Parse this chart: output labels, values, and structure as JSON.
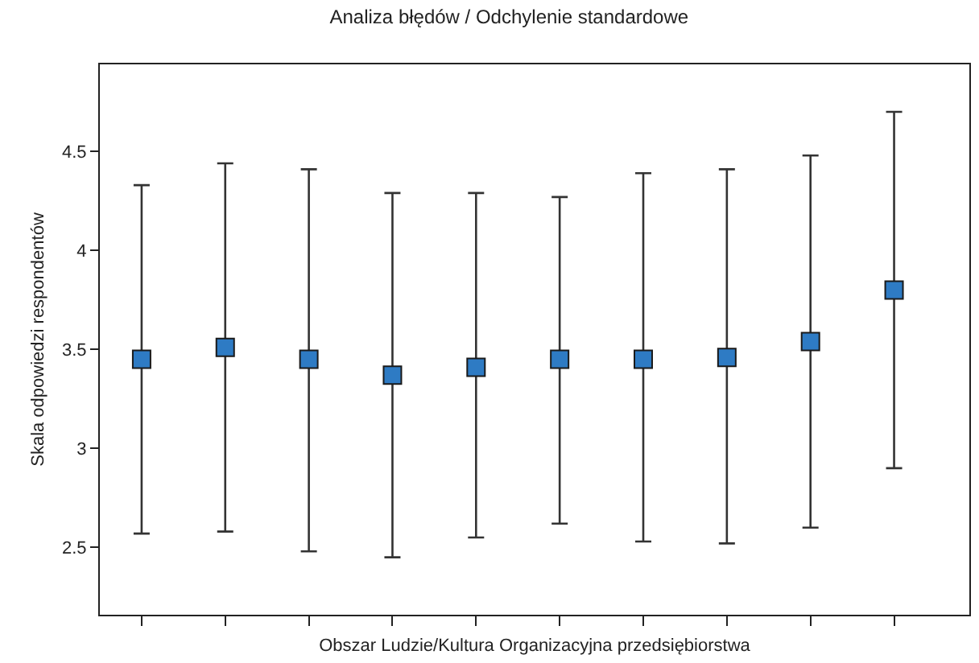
{
  "chart_data": {
    "type": "scatter",
    "title": "Analiza błędów / Odchylenie standardowe",
    "xlabel": "Obszar Ludzie/Kultura Organizacyjna przedsiębiorstwa",
    "ylabel": "Skala odpowiedzi respondentów",
    "categories": [
      null,
      null,
      null,
      null,
      null,
      null,
      null,
      null,
      null,
      null
    ],
    "values": [
      3.45,
      3.51,
      3.45,
      3.37,
      3.41,
      3.45,
      3.45,
      3.46,
      3.54,
      3.8
    ],
    "errors": [
      [
        2.57,
        4.33
      ],
      [
        2.58,
        4.44
      ],
      [
        2.48,
        4.41
      ],
      [
        2.45,
        4.29
      ],
      [
        2.55,
        4.29
      ],
      [
        2.62,
        4.27
      ],
      [
        2.53,
        4.39
      ],
      [
        2.52,
        4.41
      ],
      [
        2.6,
        4.48
      ],
      [
        2.9,
        4.7
      ]
    ],
    "color": "#2e7bc4",
    "marker": "square",
    "ylim": [
      2.16,
      4.94
    ],
    "yticks": [
      2.5,
      3,
      3.5,
      4,
      4.5
    ]
  }
}
